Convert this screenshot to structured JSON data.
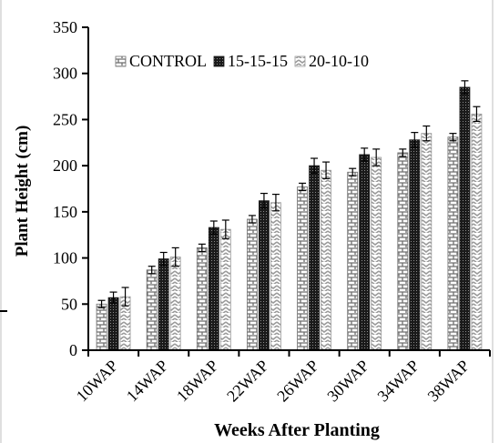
{
  "chart_data": {
    "type": "bar",
    "xlabel": "Weeks After Planting",
    "ylabel": "Plant Height (cm)",
    "ylim": [
      0,
      350
    ],
    "yticks": [
      0,
      50,
      100,
      150,
      200,
      250,
      300,
      350
    ],
    "categories": [
      "10WAP",
      "14WAP",
      "18WAP",
      "22WAP",
      "26WAP",
      "30WAP",
      "34WAP",
      "38WAP"
    ],
    "series": [
      {
        "name": "CONTROL",
        "values": [
          50,
          87,
          111,
          142,
          177,
          193,
          214,
          231
        ],
        "errors": [
          4,
          4,
          4,
          4,
          4,
          4,
          4,
          4
        ],
        "pattern": "brick",
        "color": "#6e6e6e"
      },
      {
        "name": "15-15-15",
        "values": [
          57,
          99,
          133,
          162,
          200,
          212,
          228,
          285
        ],
        "errors": [
          6,
          7,
          7,
          8,
          8,
          7,
          8,
          7
        ],
        "pattern": "dense",
        "color": "#1a1a1a"
      },
      {
        "name": "20-10-10",
        "values": [
          58,
          101,
          131,
          160,
          195,
          209,
          235,
          256
        ],
        "errors": [
          10,
          10,
          10,
          9,
          9,
          9,
          8,
          8
        ],
        "pattern": "zigzag",
        "color": "#9a9a9a"
      }
    ],
    "legend_position": "top-left",
    "grid": false,
    "error_bars": true
  }
}
